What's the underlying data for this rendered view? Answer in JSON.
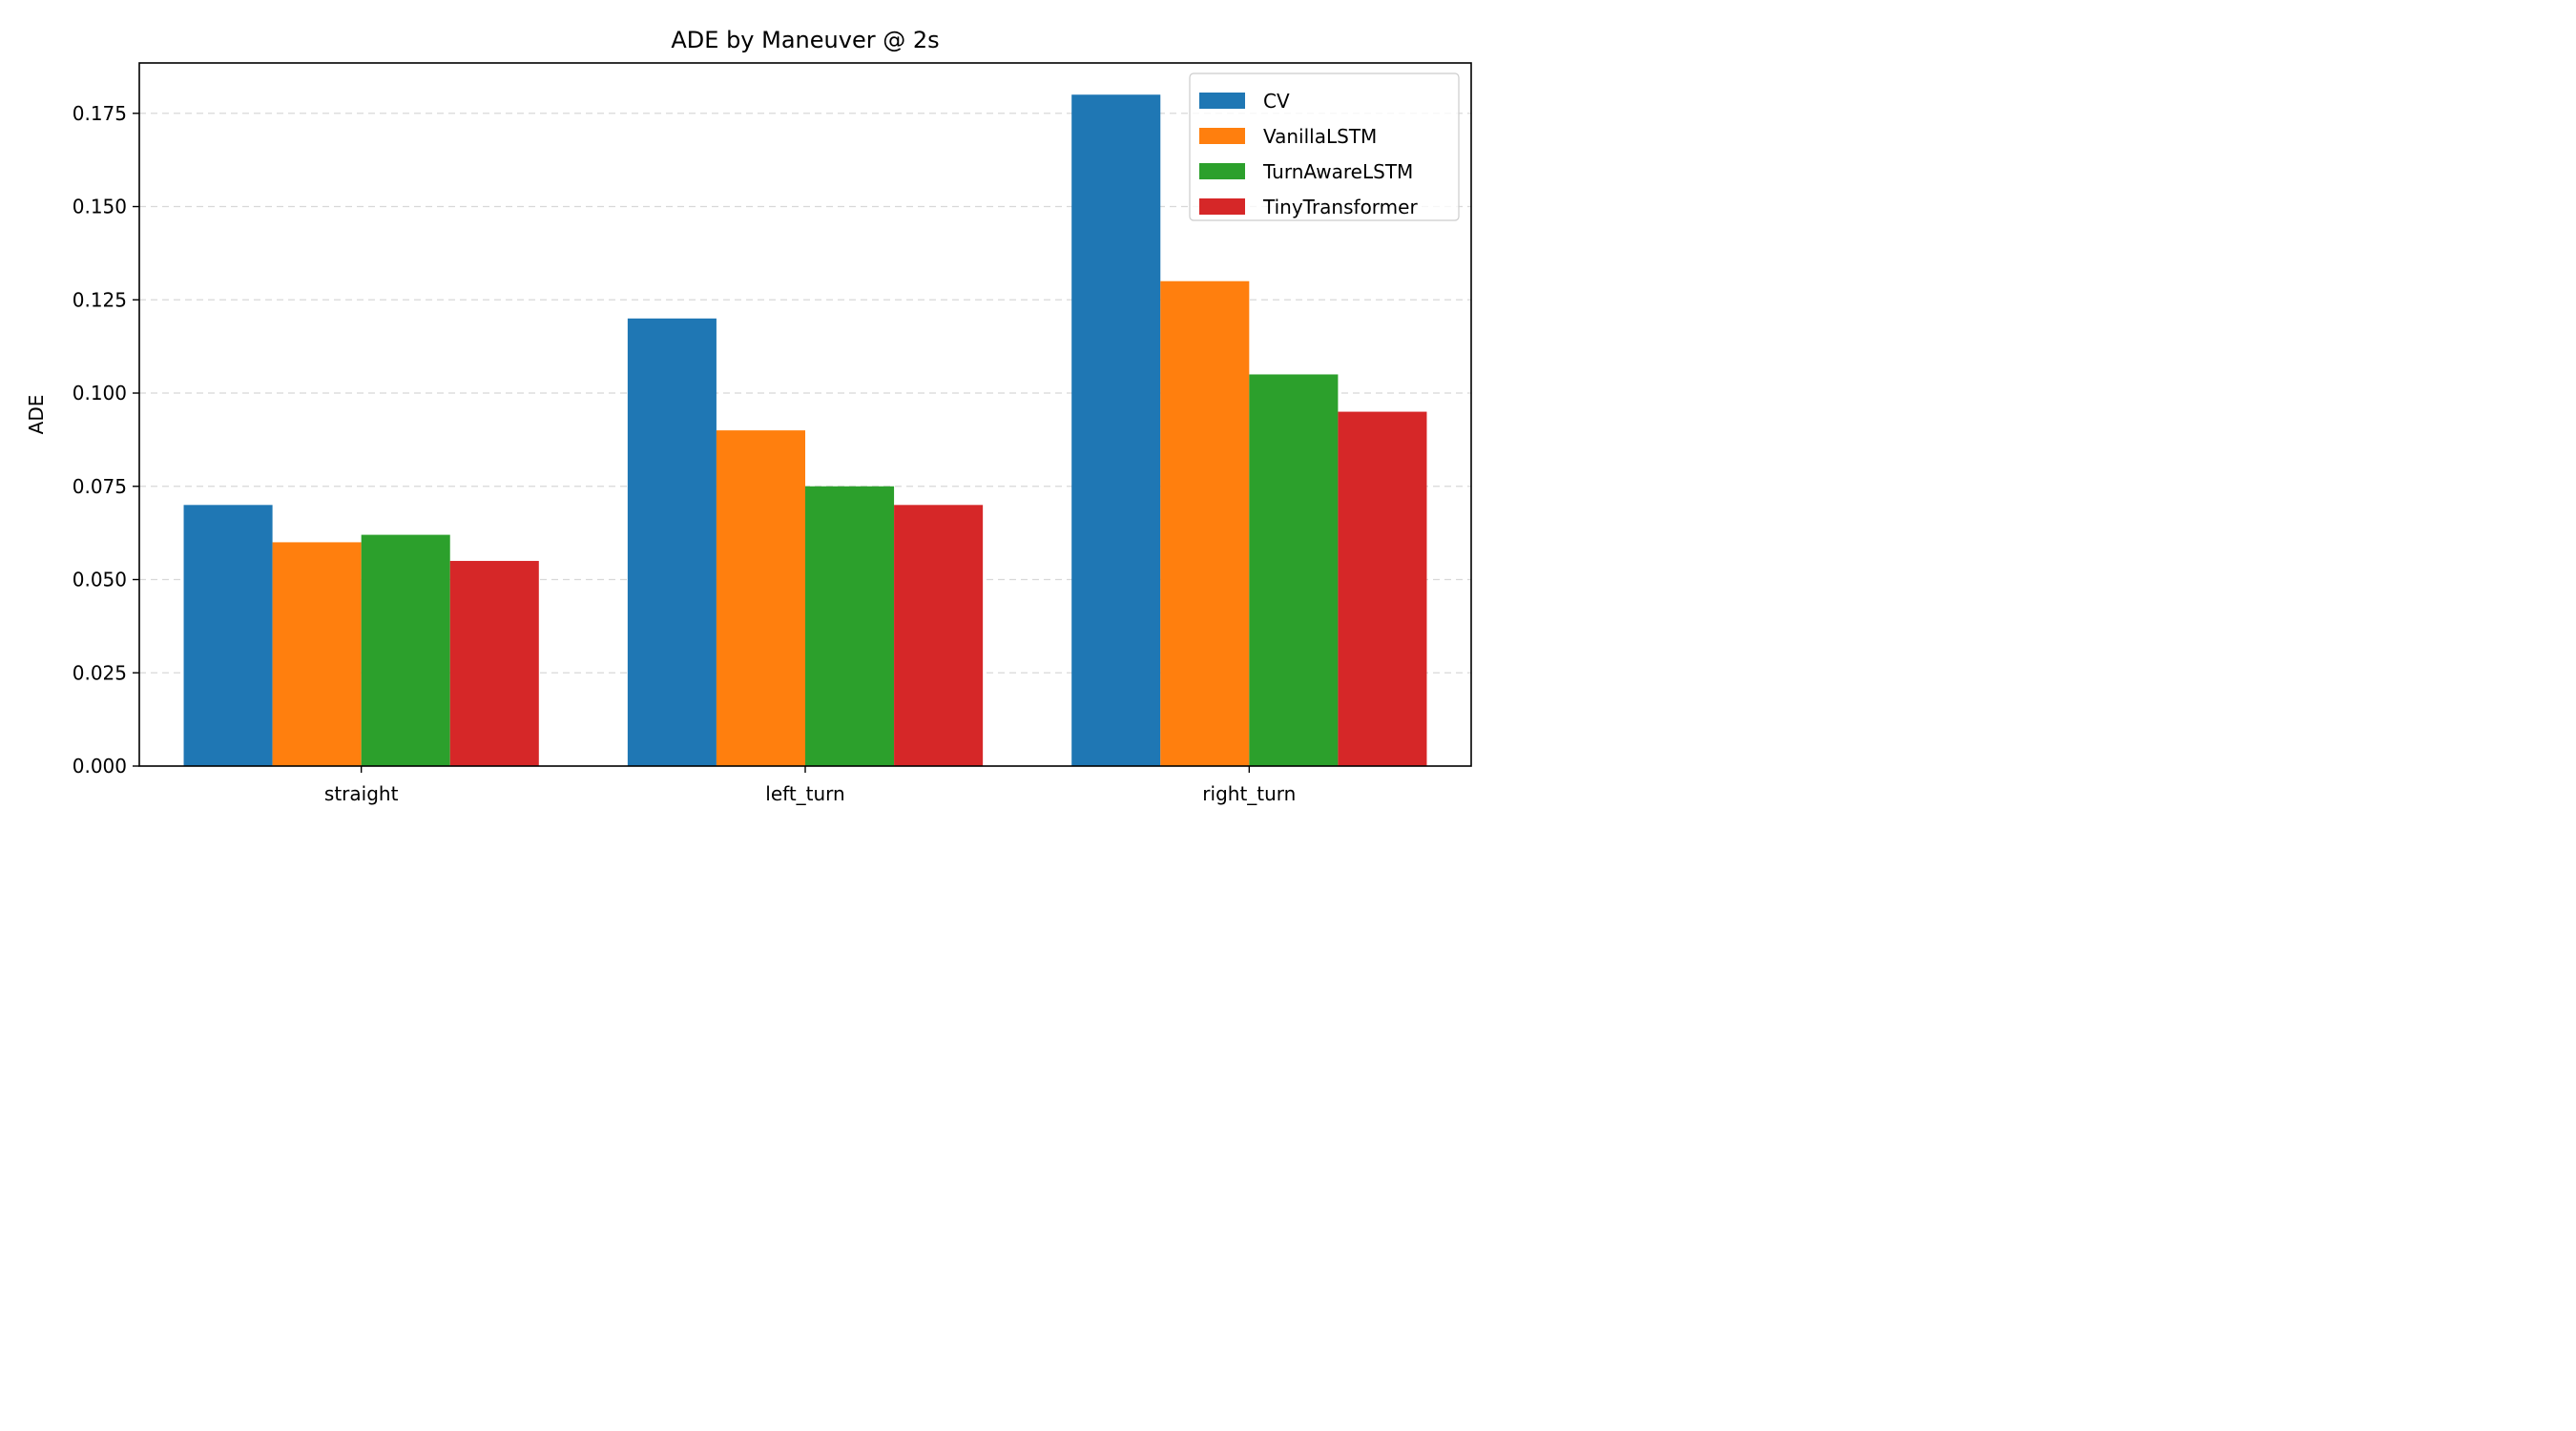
{
  "chart_data": {
    "type": "bar",
    "title": "ADE by Maneuver @ 2s",
    "xlabel": "",
    "ylabel": "ADE",
    "categories": [
      "straight",
      "left_turn",
      "right_turn"
    ],
    "series": [
      {
        "name": "CV",
        "color": "#1f77b4",
        "values": [
          0.07,
          0.12,
          0.18
        ]
      },
      {
        "name": "VanillaLSTM",
        "color": "#ff7f0e",
        "values": [
          0.06,
          0.09,
          0.13
        ]
      },
      {
        "name": "TurnAwareLSTM",
        "color": "#2ca02c",
        "values": [
          0.062,
          0.075,
          0.105
        ]
      },
      {
        "name": "TinyTransformer",
        "color": "#d62728",
        "values": [
          0.055,
          0.07,
          0.095
        ]
      }
    ],
    "ylim": [
      0,
      0.1885
    ],
    "yticks": [
      0.0,
      0.025,
      0.05,
      0.075,
      0.1,
      0.125,
      0.15,
      0.175
    ],
    "ytick_labels": [
      "0.000",
      "0.025",
      "0.050",
      "0.075",
      "0.100",
      "0.125",
      "0.150",
      "0.175"
    ],
    "grid": "y-dashed",
    "legend_position": "top-right"
  }
}
